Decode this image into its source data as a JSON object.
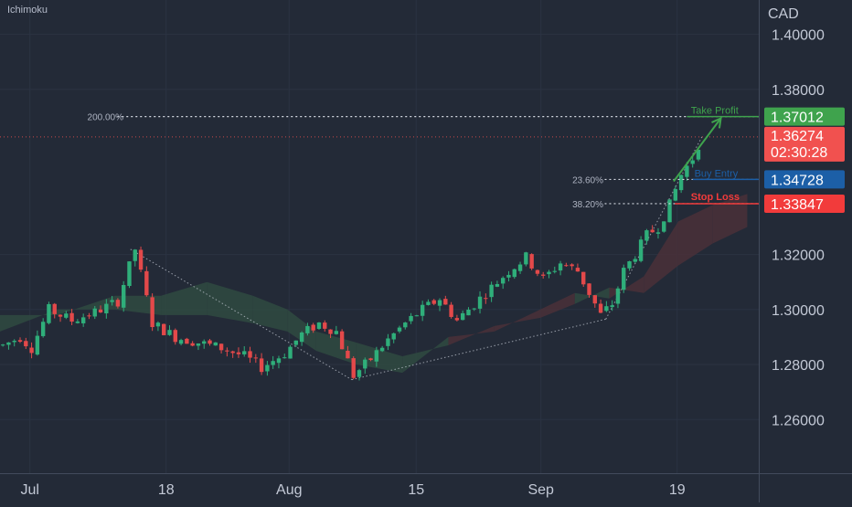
{
  "indicator": "Ichimoku",
  "currency": "CAD",
  "colors": {
    "background": "#232a37",
    "grid": "#2b3342",
    "axis_line": "#424b5c",
    "text": "#c3c9d6",
    "bull": "#2fae7a",
    "bear": "#e3494a",
    "take_profit": "#3fa34d",
    "stop_loss": "#f23b3b",
    "entry": "#1c5fa7",
    "last_price": "#f1514f",
    "fib_line": "#c9ced8",
    "cloud_bull": "#2f4a41",
    "cloud_bear": "#4a3038"
  },
  "levels": {
    "take_profit": {
      "label": "Take Profit",
      "price": "1.37012"
    },
    "current": {
      "price": "1.36274",
      "countdown": "02:30:28"
    },
    "entry": {
      "label": "Buy Entry",
      "price": "1.34728"
    },
    "stop_loss": {
      "label": "Stop Loss",
      "price": "1.33847"
    }
  },
  "fib_labels": [
    "200.00%",
    "23.60%",
    "38.20%"
  ],
  "chart_data": {
    "type": "candlestick",
    "title": "",
    "ylabel": "CAD",
    "ylim": [
      1.2405,
      1.4125
    ],
    "xlim": [
      0,
      132
    ],
    "y_ticks": [
      "1.40000",
      "1.38000",
      "1.32000",
      "1.30000",
      "1.28000",
      "1.26000"
    ],
    "x_ticks": [
      {
        "label": "Jul",
        "x": 5.2
      },
      {
        "label": "18",
        "x": 28.9
      },
      {
        "label": "Aug",
        "x": 50.3
      },
      {
        "label": "15",
        "x": 72.4
      },
      {
        "label": "Sep",
        "x": 94.1
      },
      {
        "label": "19",
        "x": 117.8
      }
    ],
    "price_path": [
      [
        0,
        1.287
      ],
      [
        3,
        1.29
      ],
      [
        5,
        1.286
      ],
      [
        8,
        1.3
      ],
      [
        12,
        1.296
      ],
      [
        16,
        1.299
      ],
      [
        20,
        1.303
      ],
      [
        23,
        1.322
      ],
      [
        26,
        1.295
      ],
      [
        30,
        1.29
      ],
      [
        34,
        1.288
      ],
      [
        38,
        1.286
      ],
      [
        42,
        1.283
      ],
      [
        45,
        1.279
      ],
      [
        49,
        1.284
      ],
      [
        52,
        1.291
      ],
      [
        55,
        1.295
      ],
      [
        58,
        1.292
      ],
      [
        61,
        1.276
      ],
      [
        64,
        1.282
      ],
      [
        67,
        1.289
      ],
      [
        70,
        1.295
      ],
      [
        73,
        1.3
      ],
      [
        76,
        1.304
      ],
      [
        79,
        1.296
      ],
      [
        82,
        1.302
      ],
      [
        85,
        1.308
      ],
      [
        88,
        1.314
      ],
      [
        91,
        1.319
      ],
      [
        94,
        1.311
      ],
      [
        97,
        1.317
      ],
      [
        100,
        1.314
      ],
      [
        102,
        1.306
      ],
      [
        104,
        1.298
      ],
      [
        106,
        1.302
      ],
      [
        108,
        1.314
      ],
      [
        110,
        1.32
      ],
      [
        112,
        1.327
      ],
      [
        114,
        1.33
      ],
      [
        116,
        1.338
      ],
      [
        118,
        1.349
      ],
      [
        120,
        1.355
      ],
      [
        121.5,
        1.3625
      ]
    ],
    "cloud": [
      [
        0,
        1.298,
        1.292
      ],
      [
        10,
        1.298,
        1.3
      ],
      [
        20,
        1.305,
        1.3
      ],
      [
        28,
        1.305,
        1.298
      ],
      [
        36,
        1.31,
        1.298
      ],
      [
        44,
        1.305,
        1.295
      ],
      [
        50,
        1.3,
        1.292
      ],
      [
        55,
        1.292,
        1.285
      ],
      [
        62,
        1.288,
        1.28
      ],
      [
        70,
        1.283,
        1.277
      ],
      [
        78,
        1.287,
        1.29
      ],
      [
        86,
        1.294,
        1.292
      ],
      [
        94,
        1.297,
        1.3
      ],
      [
        100,
        1.302,
        1.306
      ],
      [
        106,
        1.308,
        1.304
      ],
      [
        112,
        1.306,
        1.312
      ],
      [
        118,
        1.316,
        1.332
      ],
      [
        124,
        1.324,
        1.338
      ],
      [
        130,
        1.33,
        1.342
      ]
    ],
    "fib_anchors": [
      [
        22.7,
        1.3219
      ],
      [
        61.2,
        1.2745
      ],
      [
        105.4,
        1.2965
      ],
      [
        122.3,
        1.3635
      ]
    ],
    "arrow": [
      [
        117.2,
        1.3466
      ],
      [
        125.4,
        1.3695
      ]
    ]
  }
}
